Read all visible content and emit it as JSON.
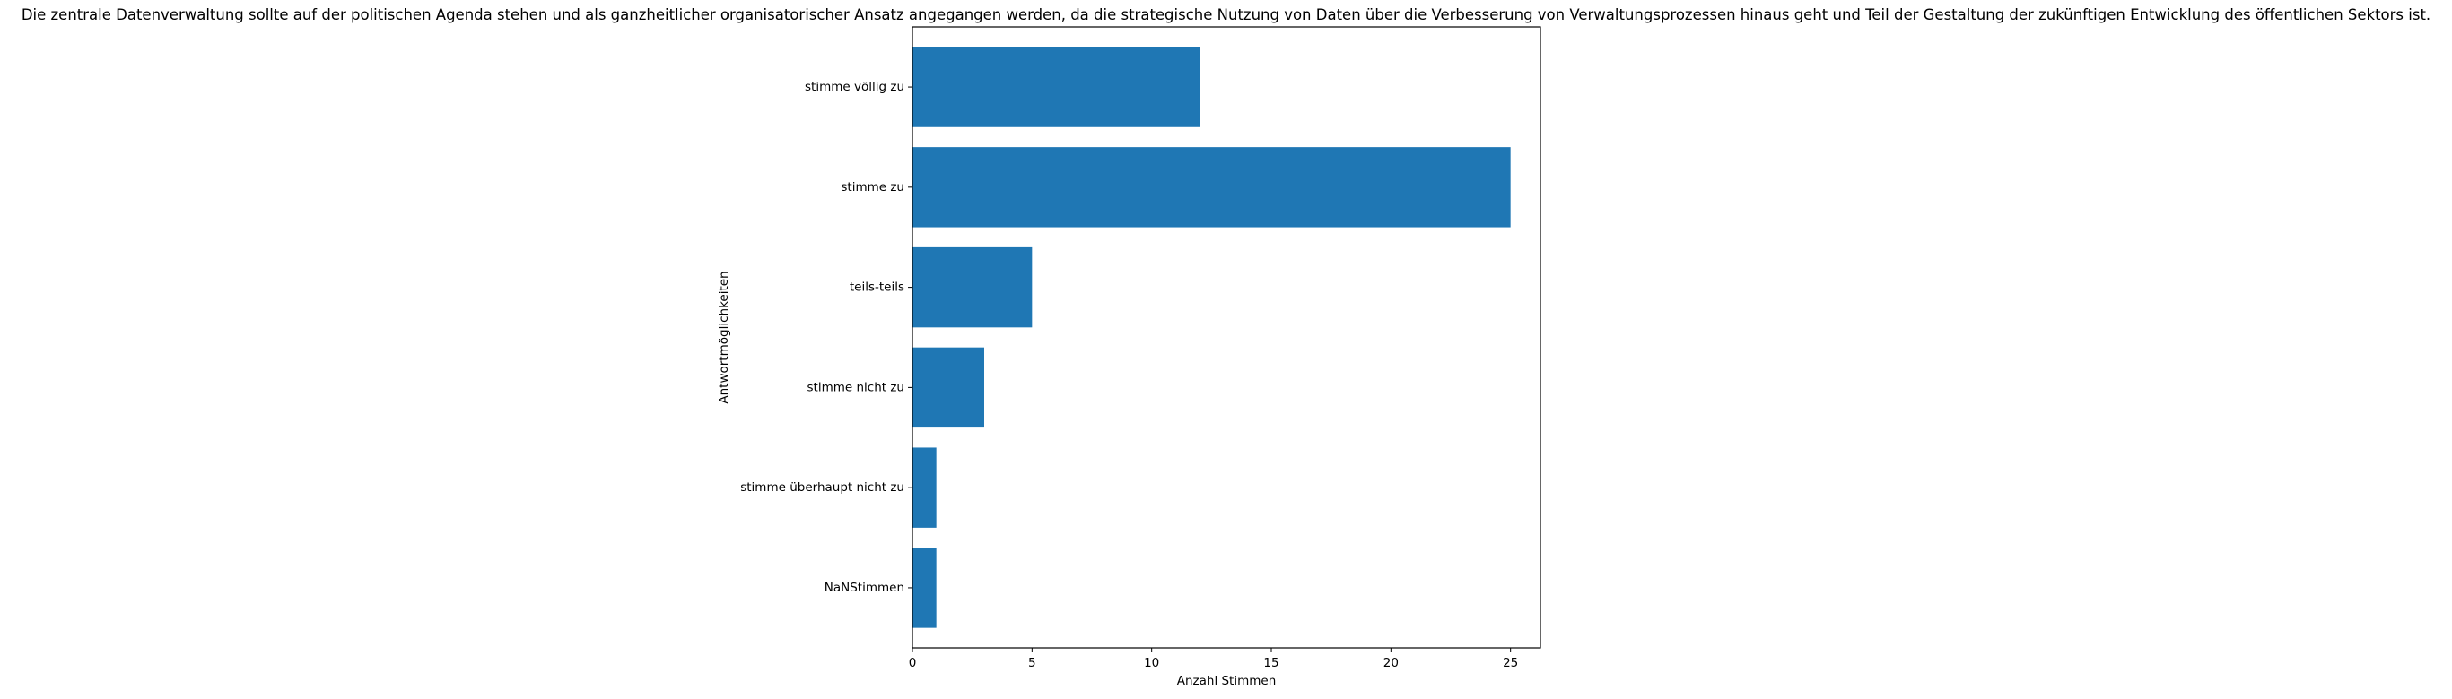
{
  "chart_data": {
    "type": "bar",
    "orientation": "horizontal",
    "title": "Die zentrale Datenverwaltung sollte auf der politischen Agenda stehen und als ganzheitlicher organisatorischer Ansatz angegangen werden, da die strategische Nutzung von Daten über die Verbesserung von Verwaltungsprozessen hinaus geht und Teil der Gestaltung der zukünftigen Entwicklung des öffentlichen Sektors ist.",
    "xlabel": "Anzahl Stimmen",
    "ylabel": "Antwortmöglichkeiten",
    "categories": [
      "stimme völlig zu",
      "stimme zu",
      "teils-teils",
      "stimme nicht zu",
      "stimme überhaupt nicht zu",
      "NaNStimmen"
    ],
    "values": [
      12,
      25,
      5,
      3,
      1,
      1
    ],
    "xlim": [
      0,
      26.25
    ],
    "xticks": [
      0,
      5,
      10,
      15,
      20,
      25
    ],
    "grid": false,
    "legend": false,
    "bar_color": "#1f77b4"
  }
}
